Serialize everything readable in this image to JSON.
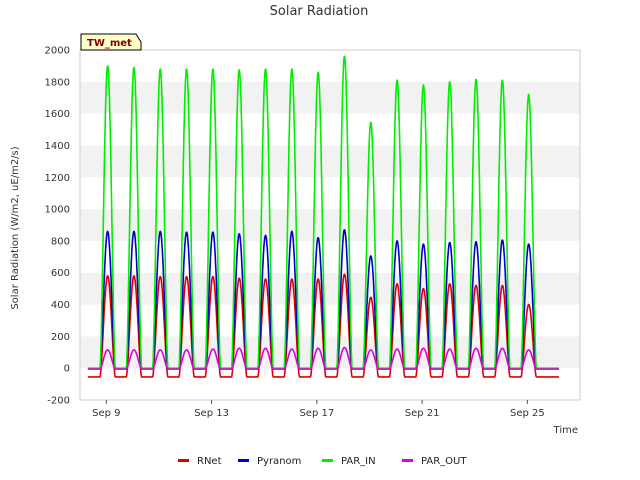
{
  "chart_data": {
    "type": "line",
    "title": "Solar Radiation",
    "xlabel": "Time",
    "ylabel": "Solar Radiation (W/m2, uE/m2/s)",
    "ylim": [
      -200,
      2000
    ],
    "xlim": [
      "2023-09-08",
      "2023-09-27"
    ],
    "x_tick_labels": [
      "Sep 9",
      "Sep 13",
      "Sep 17",
      "Sep 21",
      "Sep 25"
    ],
    "y_ticks": [
      -200,
      0,
      200,
      400,
      600,
      800,
      1000,
      1200,
      1400,
      1600,
      1800,
      2000
    ],
    "grid": "horizontal alternating bands",
    "legend_position": "bottom-center",
    "badge": "TW_met",
    "days": [
      "Sep 9",
      "Sep 10",
      "Sep 11",
      "Sep 12",
      "Sep 13",
      "Sep 14",
      "Sep 15",
      "Sep 16",
      "Sep 17",
      "Sep 18",
      "Sep 19",
      "Sep 20",
      "Sep 21",
      "Sep 22",
      "Sep 23",
      "Sep 24",
      "Sep 25",
      "Sep 26"
    ],
    "series": [
      {
        "name": "RNet",
        "color": "#dd0000",
        "night": -55,
        "daily_peak": [
          580,
          580,
          575,
          575,
          575,
          565,
          560,
          560,
          560,
          590,
          445,
          530,
          500,
          530,
          520,
          520,
          400,
          null
        ]
      },
      {
        "name": "Pyranom",
        "color": "#0000cc",
        "night": -5,
        "daily_peak": [
          860,
          860,
          860,
          855,
          855,
          845,
          835,
          860,
          820,
          870,
          705,
          800,
          780,
          790,
          795,
          805,
          780,
          null
        ]
      },
      {
        "name": "PAR_IN",
        "color": "#00ee00",
        "night": 0,
        "daily_peak": [
          1900,
          1890,
          1880,
          1880,
          1880,
          1875,
          1880,
          1880,
          1860,
          1960,
          1545,
          1810,
          1780,
          1800,
          1815,
          1810,
          1720,
          null
        ]
      },
      {
        "name": "PAR_OUT",
        "color": "#dd00dd",
        "night": -5,
        "daily_peak": [
          115,
          115,
          115,
          115,
          120,
          125,
          125,
          120,
          125,
          130,
          115,
          120,
          125,
          120,
          125,
          125,
          115,
          null
        ]
      }
    ]
  }
}
